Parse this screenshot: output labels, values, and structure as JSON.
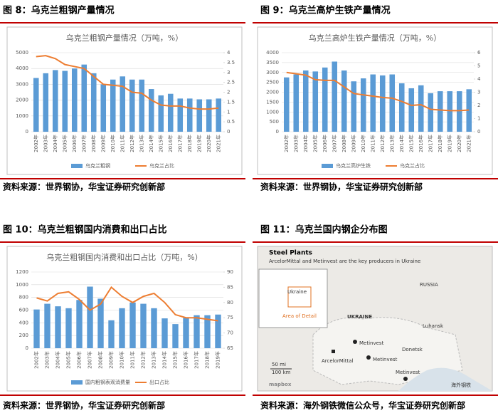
{
  "chart_data": [
    {
      "type": "combo",
      "caption": "图 8：乌克兰粗钢产量情况",
      "title": "乌克兰粗钢产量情况（万吨，%）",
      "source": "资料来源：世界钢协，华宝证券研究创新部",
      "categories": [
        "2002年",
        "2003年",
        "2004年",
        "2005年",
        "2006年",
        "2007年",
        "2008年",
        "2009年",
        "2010年",
        "2011年",
        "2012年",
        "2013年",
        "2014年",
        "2015年",
        "2016年",
        "2017年",
        "2018年",
        "2019年",
        "2020年",
        "2021年"
      ],
      "series": [
        {
          "name": "乌克兰粗钢",
          "color": "#5b9bd5",
          "values": [
            3400,
            3700,
            3900,
            3850,
            4000,
            4250,
            3700,
            3000,
            3300,
            3500,
            3300,
            3300,
            2700,
            2300,
            2400,
            2100,
            2100,
            2050,
            2050,
            2100
          ]
        },
        {
          "name": "乌克兰占比",
          "color": "#ed7d31",
          "axis": "y2",
          "values": [
            3.8,
            3.85,
            3.7,
            3.4,
            3.3,
            3.2,
            2.8,
            2.4,
            2.35,
            2.3,
            2.0,
            1.95,
            1.6,
            1.35,
            1.3,
            1.3,
            1.2,
            1.15,
            1.15,
            1.2
          ]
        }
      ],
      "ylim": [
        0,
        5000
      ],
      "yticks": [
        0,
        1000,
        2000,
        3000,
        4000,
        5000
      ],
      "y2lim": [
        0,
        4
      ],
      "y2ticks": [
        0,
        0.5,
        1,
        1.5,
        2,
        2.5,
        3,
        3.5,
        4
      ]
    },
    {
      "type": "combo",
      "caption": "图 9：乌克兰高炉生铁产量情况",
      "title": "乌克兰高炉生铁产量情况（万吨，%）",
      "source": "资料来源：世界钢协，华宝证券研究创新部",
      "categories": [
        "2002年",
        "2003年",
        "2004年",
        "2005年",
        "2006年",
        "2007年",
        "2008年",
        "2009年",
        "2010年",
        "2011年",
        "2012年",
        "2013年",
        "2014年",
        "2015年",
        "2016年",
        "2017年",
        "2018年",
        "2019年",
        "2020年",
        "2021年"
      ],
      "series": [
        {
          "name": "乌克兰高炉生铁",
          "color": "#5b9bd5",
          "values": [
            2750,
            2900,
            3100,
            3050,
            3250,
            3550,
            3100,
            2550,
            2700,
            2900,
            2850,
            2900,
            2450,
            2200,
            2350,
            1950,
            2050,
            2050,
            2050,
            2150
          ]
        },
        {
          "name": "乌克兰占比",
          "color": "#ed7d31",
          "axis": "y2",
          "values": [
            4.5,
            4.4,
            4.3,
            3.95,
            3.9,
            3.9,
            3.4,
            2.9,
            2.8,
            2.7,
            2.6,
            2.55,
            2.3,
            2.0,
            2.05,
            1.7,
            1.65,
            1.6,
            1.6,
            1.65
          ]
        }
      ],
      "ylim": [
        0,
        4000
      ],
      "yticks": [
        0,
        500,
        1000,
        1500,
        2000,
        2500,
        3000,
        3500,
        4000
      ],
      "y2lim": [
        0,
        6
      ],
      "y2ticks": [
        0,
        1,
        2,
        3,
        4,
        5,
        6
      ]
    },
    {
      "type": "combo",
      "caption": "图 10：乌克兰粗钢国内消费和出口占比",
      "title": "乌克兰粗钢国内消费和出口占比（万吨，%）",
      "source": "资料来源：世界钢协，华宝证券研究创新部",
      "categories": [
        "2002年",
        "2003年",
        "2004年",
        "2005年",
        "2006年",
        "2007年",
        "2008年",
        "2009年",
        "2010年",
        "2011年",
        "2012年",
        "2013年",
        "2014年",
        "2015年",
        "2016年",
        "2017年",
        "2018年",
        "2019年"
      ],
      "series": [
        {
          "name": "国内粗钢表观消费量",
          "color": "#5b9bd5",
          "values": [
            610,
            700,
            660,
            630,
            760,
            970,
            780,
            440,
            630,
            720,
            700,
            630,
            470,
            380,
            480,
            520,
            520,
            530
          ]
        },
        {
          "name": "出口占比",
          "color": "#ed7d31",
          "axis": "y2",
          "values": [
            81.5,
            80.5,
            83,
            83.5,
            81,
            77.5,
            79.5,
            85,
            82,
            80,
            82,
            83,
            80,
            76,
            75,
            75,
            74.5,
            74
          ]
        }
      ],
      "ylim": [
        0,
        1200
      ],
      "yticks": [
        0,
        200,
        400,
        600,
        800,
        1000,
        1200
      ],
      "y2lim": [
        65,
        90
      ],
      "y2ticks": [
        65,
        70,
        75,
        80,
        85,
        90
      ]
    }
  ],
  "map": {
    "caption": "图 11：乌克兰国内钢企分布图",
    "source": "资料来源：海外钢铁微信公众号，华宝证券研究创新部",
    "title": "Steel Plants",
    "subtitle": "ArcelorMittal and Metinvest are the key producers in Ukraine",
    "inset_country": "Ukraine",
    "inset_area": "Area of Detail",
    "labels": [
      "RUSSIA",
      "UKRAINE",
      "Luhansk",
      "Donetsk"
    ],
    "plants": [
      "Metinvest",
      "ArcelorMittal",
      "Metinvest",
      "Metinvest"
    ],
    "scale_mi": "50 mi",
    "scale_km": "100 km",
    "credit": "mapbox",
    "watermark": "海外钢铁"
  }
}
